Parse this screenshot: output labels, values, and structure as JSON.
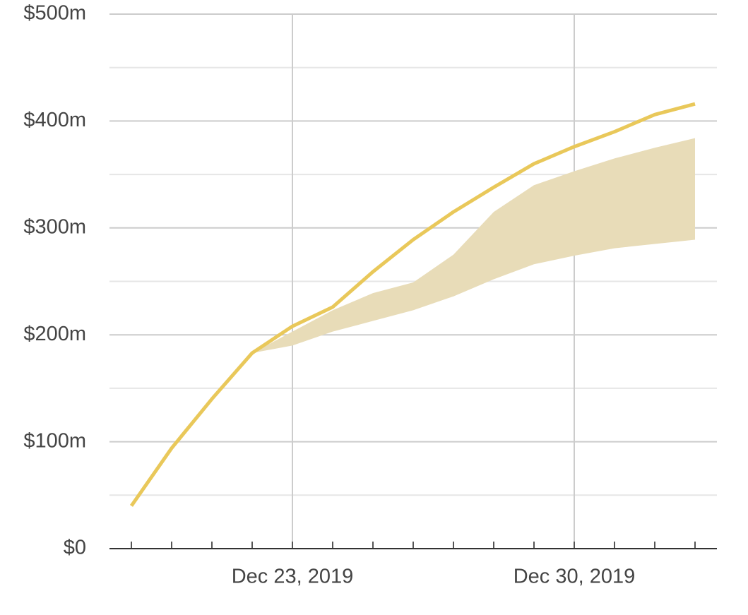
{
  "chart_data": {
    "type": "line",
    "x": [
      "2019-12-19",
      "2019-12-20",
      "2019-12-21",
      "2019-12-22",
      "2019-12-23",
      "2019-12-24",
      "2019-12-25",
      "2019-12-26",
      "2019-12-27",
      "2019-12-28",
      "2019-12-29",
      "2019-12-30",
      "2019-12-31",
      "2020-01-01",
      "2020-01-02"
    ],
    "series": [
      {
        "color": "#e9c85a",
        "values": [
          40,
          94,
          140,
          183,
          208,
          226,
          259,
          289,
          315,
          338,
          360,
          376,
          390,
          406,
          416
        ]
      }
    ],
    "band": {
      "color": "#e8dcb8",
      "lower": [
        null,
        null,
        null,
        183,
        190,
        203,
        213,
        223,
        236,
        252,
        266,
        274,
        281,
        285,
        289
      ],
      "upper": [
        null,
        null,
        null,
        183,
        203,
        223,
        239,
        249,
        275,
        315,
        340,
        353,
        365,
        375,
        384
      ]
    },
    "ylim": [
      0,
      500
    ],
    "yticks": [
      {
        "value": 0,
        "label": "$0"
      },
      {
        "value": 100,
        "label": "$100m"
      },
      {
        "value": 200,
        "label": "$200m"
      },
      {
        "value": 300,
        "label": "$300m"
      },
      {
        "value": 400,
        "label": "$400m"
      },
      {
        "value": 500,
        "label": "$500m"
      }
    ],
    "y_minor_ticks": [
      50,
      150,
      250,
      350,
      450
    ],
    "xticks": [
      {
        "value": "2019-12-23",
        "label": "Dec 23, 2019"
      },
      {
        "value": "2019-12-30",
        "label": "Dec 30, 2019"
      }
    ],
    "grid": true
  }
}
